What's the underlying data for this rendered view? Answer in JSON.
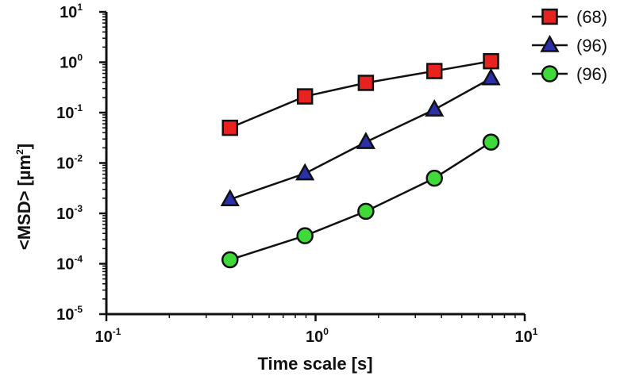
{
  "chart_data": {
    "type": "line",
    "title": "",
    "xlabel": "Time scale [s]",
    "ylabel": "<MSD> [µm",
    "ylabel_sup": "2",
    "ylabel_tail": "]",
    "xscale": "log",
    "yscale": "log",
    "xlim": [
      0.1,
      10
    ],
    "ylim": [
      1e-05,
      10
    ],
    "grid": false,
    "legend_position": "top-right",
    "x_ticks": [
      {
        "base": "10",
        "exp": "-1"
      },
      {
        "base": "10",
        "exp": "0"
      },
      {
        "base": "10",
        "exp": "1"
      }
    ],
    "y_ticks": [
      {
        "base": "10",
        "exp": "1"
      },
      {
        "base": "10",
        "exp": "0"
      },
      {
        "base": "10",
        "exp": "-1"
      },
      {
        "base": "10",
        "exp": "-2"
      },
      {
        "base": "10",
        "exp": "-3"
      },
      {
        "base": "10",
        "exp": "-4"
      },
      {
        "base": "10",
        "exp": "-5"
      }
    ],
    "series": [
      {
        "name": "(68)",
        "marker": "square",
        "color": "#e8231f",
        "x": [
          0.39,
          0.89,
          1.74,
          3.7,
          6.9
        ],
        "y": [
          0.05,
          0.21,
          0.39,
          0.67,
          1.05
        ]
      },
      {
        "name": "(96)",
        "marker": "triangle",
        "color": "#2b2fa8",
        "x": [
          0.39,
          0.89,
          1.74,
          3.7,
          6.9
        ],
        "y": [
          0.0019,
          0.0062,
          0.026,
          0.115,
          0.48
        ]
      },
      {
        "name": "(96)",
        "marker": "circle",
        "color": "#3fd93a",
        "x": [
          0.39,
          0.89,
          1.74,
          3.7,
          6.9
        ],
        "y": [
          0.00012,
          0.00036,
          0.0011,
          0.005,
          0.026
        ]
      }
    ]
  }
}
